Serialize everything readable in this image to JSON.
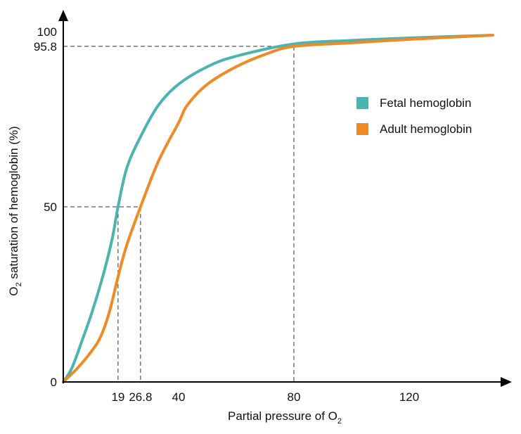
{
  "chart_data": {
    "type": "line",
    "title": "",
    "xlabel": "Partial pressure of O",
    "xlabel_sub": "2",
    "ylabel": "O",
    "ylabel_sub": "2",
    "ylabel_rest": " saturation of hemoglobin (%)",
    "xlim": [
      0,
      152
    ],
    "ylim": [
      0,
      100
    ],
    "x_ticks": [
      {
        "value": 19,
        "label": "19"
      },
      {
        "value": 26.8,
        "label": "26.8"
      },
      {
        "value": 40,
        "label": "40"
      },
      {
        "value": 80,
        "label": "80"
      },
      {
        "value": 120,
        "label": "120"
      }
    ],
    "y_ticks": [
      {
        "value": 0,
        "label": "0"
      },
      {
        "value": 50,
        "label": "50"
      },
      {
        "value": 95.8,
        "label": "95.8"
      },
      {
        "value": 100,
        "label": "100"
      }
    ],
    "reference_lines": [
      {
        "x": 19,
        "y": 50
      },
      {
        "x": 26.8,
        "y": 50
      },
      {
        "x": 80,
        "y": 95.8
      }
    ],
    "legend_position": "right",
    "series": [
      {
        "name": "Fetal hemoglobin",
        "color": "#4bb3b0",
        "points": [
          [
            0,
            0
          ],
          [
            3,
            4
          ],
          [
            6.6,
            12
          ],
          [
            10,
            20
          ],
          [
            14,
            31
          ],
          [
            17,
            41
          ],
          [
            19,
            50
          ],
          [
            22,
            61
          ],
          [
            26.8,
            70
          ],
          [
            33,
            79
          ],
          [
            40,
            85
          ],
          [
            50,
            90
          ],
          [
            60,
            93
          ],
          [
            80,
            96.5
          ],
          [
            100,
            97.5
          ],
          [
            120,
            98.2
          ],
          [
            149,
            99
          ]
        ]
      },
      {
        "name": "Adult hemoglobin",
        "color": "#ef8a25",
        "points": [
          [
            0,
            0
          ],
          [
            5,
            4
          ],
          [
            10,
            9
          ],
          [
            13,
            13
          ],
          [
            16,
            20
          ],
          [
            19,
            30
          ],
          [
            22,
            39
          ],
          [
            26.8,
            50
          ],
          [
            33,
            63
          ],
          [
            40,
            74
          ],
          [
            43,
            79
          ],
          [
            50,
            85
          ],
          [
            60,
            90
          ],
          [
            70,
            93.5
          ],
          [
            80,
            95.8
          ],
          [
            100,
            96.8
          ],
          [
            120,
            97.8
          ],
          [
            149,
            99
          ]
        ]
      }
    ]
  }
}
